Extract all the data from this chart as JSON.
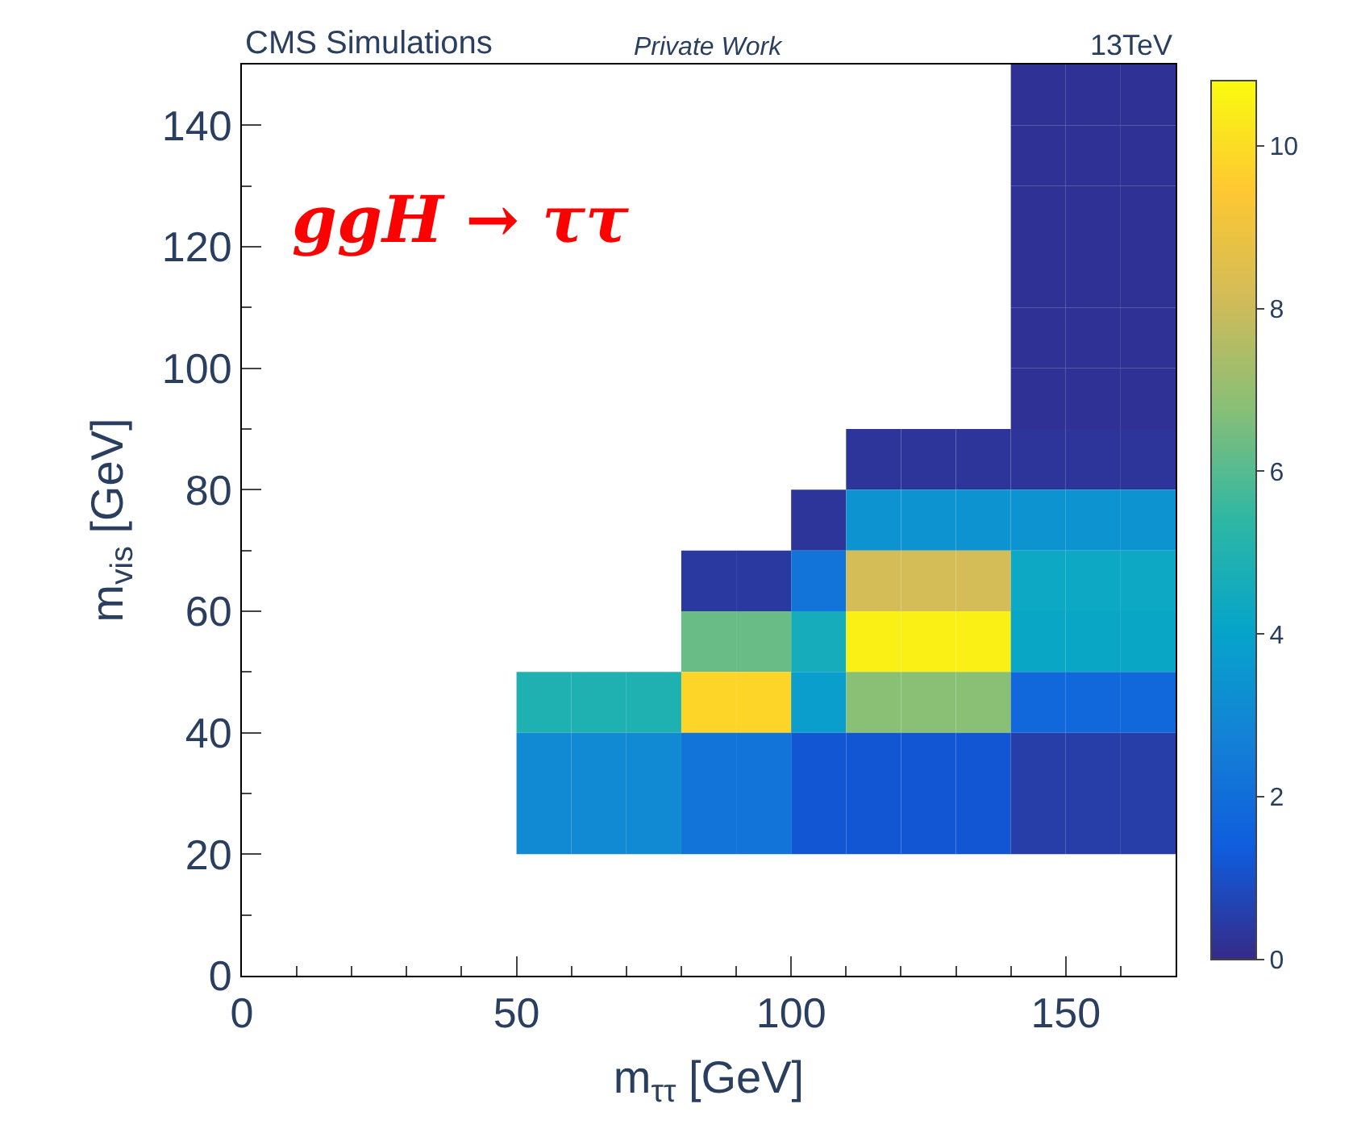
{
  "chart_data": {
    "type": "heatmap",
    "xlabel": "m$_{ττ}$ [GeV]",
    "ylabel": "m$_{vis}$ [GeV]",
    "annotations": [
      "CMS Simulations",
      "Private Work",
      "13TeV",
      "ggH → ττ"
    ],
    "x": [
      55,
      65,
      75,
      85,
      95,
      105,
      115,
      125,
      135,
      145,
      155,
      165
    ],
    "y": [
      145,
      135,
      125,
      115,
      105,
      95,
      85,
      75,
      65,
      55,
      45,
      35,
      25
    ],
    "cells": [
      [
        null,
        null,
        null,
        null,
        null,
        null,
        null,
        null,
        null,
        0.2,
        0.2,
        0.2
      ],
      [
        null,
        null,
        null,
        null,
        null,
        null,
        null,
        null,
        null,
        0.2,
        0.2,
        0.2
      ],
      [
        null,
        null,
        null,
        null,
        null,
        null,
        null,
        null,
        null,
        0.2,
        0.2,
        0.2
      ],
      [
        null,
        null,
        null,
        null,
        null,
        null,
        null,
        null,
        null,
        0.2,
        0.2,
        0.2
      ],
      [
        null,
        null,
        null,
        null,
        null,
        null,
        null,
        null,
        null,
        0.2,
        0.2,
        0.2
      ],
      [
        null,
        null,
        null,
        null,
        null,
        null,
        null,
        null,
        null,
        0.2,
        0.2,
        0.2
      ],
      [
        null,
        null,
        null,
        null,
        null,
        null,
        0.3,
        0.3,
        0.3,
        0.3,
        0.3,
        0.3
      ],
      [
        null,
        null,
        null,
        null,
        null,
        0.3,
        3.4,
        3.4,
        3.4,
        3.4,
        3.4,
        3.4
      ],
      [
        null,
        null,
        null,
        0.4,
        0.4,
        2.2,
        8.2,
        8.2,
        8.2,
        4.3,
        4.3,
        4.3
      ],
      [
        null,
        null,
        null,
        6.3,
        6.3,
        4.6,
        10.5,
        10.5,
        10.5,
        4.2,
        4.2,
        4.2
      ],
      [
        4.9,
        4.9,
        4.9,
        9.8,
        9.8,
        3.8,
        6.8,
        6.8,
        6.8,
        1.8,
        1.8,
        1.8
      ],
      [
        3.0,
        3.0,
        3.0,
        2.2,
        2.2,
        1.2,
        1.2,
        1.2,
        1.2,
        0.5,
        0.5,
        0.5
      ],
      [
        3.0,
        3.0,
        3.0,
        2.2,
        2.2,
        1.2,
        1.2,
        1.2,
        1.2,
        0.5,
        0.5,
        0.5
      ]
    ],
    "xlim": [
      0,
      170
    ],
    "xticks": [
      0,
      50,
      100,
      150
    ],
    "ylim": [
      0,
      150
    ],
    "yticks": [
      0,
      20,
      40,
      60,
      80,
      100,
      120,
      140
    ],
    "clim": [
      0,
      10.8
    ],
    "cticks": [
      0,
      2,
      4,
      6,
      8,
      10
    ],
    "grid": false
  }
}
